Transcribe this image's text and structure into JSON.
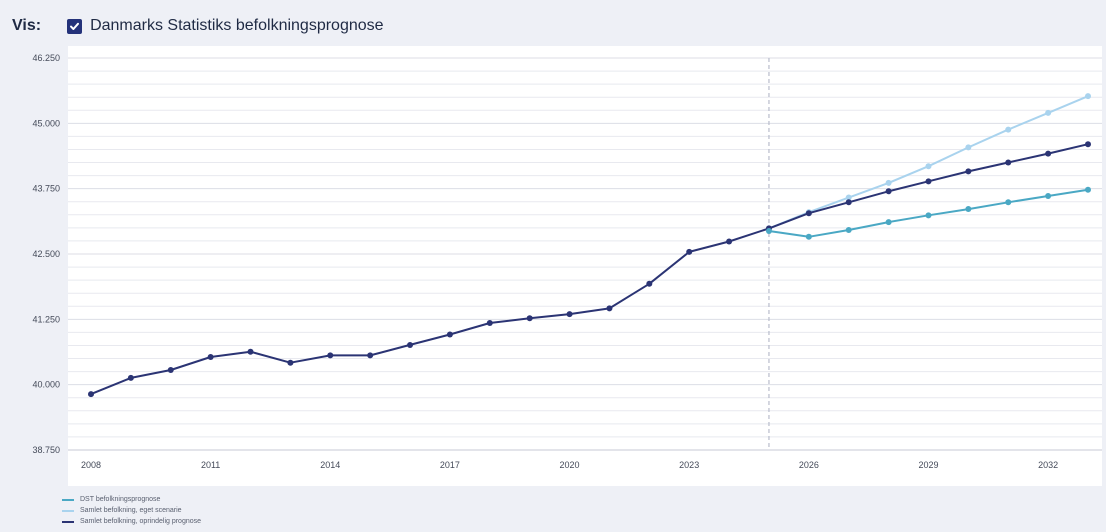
{
  "header": {
    "vis_label": "Vis:",
    "checkbox_label": "Danmarks Statistiks befolkningsprognose",
    "checkbox_checked": true
  },
  "colors": {
    "dst": "#4aa8c4",
    "eget": "#a9d3ee",
    "oprindelig": "#2b3474",
    "divider": "#b8bdcc",
    "grid": "#e8e9ef"
  },
  "legend": [
    {
      "label": "DST befolkningsprognose",
      "color": "#4aa8c4"
    },
    {
      "label": "Samlet befolkning, eget scenarie",
      "color": "#a9d3ee"
    },
    {
      "label": "Samlet befolkning, oprindelig prognose",
      "color": "#2b3474"
    }
  ],
  "chart_data": {
    "type": "line",
    "title": "",
    "xlabel": "",
    "ylabel": "",
    "ylim": [
      38750,
      46250
    ],
    "xlim": [
      2008,
      2033
    ],
    "yticks": [
      38750,
      40000,
      41250,
      42500,
      43750,
      45000,
      46250
    ],
    "ytick_labels": [
      "38.750",
      "40.000",
      "41.250",
      "42.500",
      "43.750",
      "45.000",
      "46.250"
    ],
    "xticks": [
      2008,
      2011,
      2014,
      2017,
      2020,
      2023,
      2026,
      2029,
      2032
    ],
    "xtick_labels": [
      "2008",
      "2011",
      "2014",
      "2017",
      "2020",
      "2023",
      "2026",
      "2029",
      "2032"
    ],
    "divider_x": 2025,
    "grid": true,
    "series": [
      {
        "name": "Samlet befolkning, eget scenarie",
        "color": "#a9d3ee",
        "x": [
          2025,
          2026,
          2027,
          2028,
          2029,
          2030,
          2031,
          2032,
          2033
        ],
        "y": [
          42990,
          43300,
          43580,
          43860,
          44180,
          44540,
          44880,
          45200,
          45520
        ]
      },
      {
        "name": "Samlet befolkning, oprindelig prognose",
        "color": "#2b3474",
        "x": [
          2008,
          2009,
          2010,
          2011,
          2012,
          2013,
          2014,
          2015,
          2016,
          2017,
          2018,
          2019,
          2020,
          2021,
          2022,
          2023,
          2024,
          2025,
          2026,
          2027,
          2028,
          2029,
          2030,
          2031,
          2032,
          2033
        ],
        "y": [
          39820,
          40130,
          40280,
          40530,
          40630,
          40420,
          40560,
          40560,
          40760,
          40960,
          41180,
          41270,
          41350,
          41460,
          41930,
          42540,
          42740,
          42990,
          43280,
          43490,
          43700,
          43890,
          44080,
          44250,
          44420,
          44600
        ]
      },
      {
        "name": "DST befolkningsprognose",
        "color": "#4aa8c4",
        "x": [
          2025,
          2026,
          2027,
          2028,
          2029,
          2030,
          2031,
          2032,
          2033
        ],
        "y": [
          42940,
          42830,
          42960,
          43110,
          43240,
          43360,
          43490,
          43610,
          43730
        ]
      }
    ]
  }
}
